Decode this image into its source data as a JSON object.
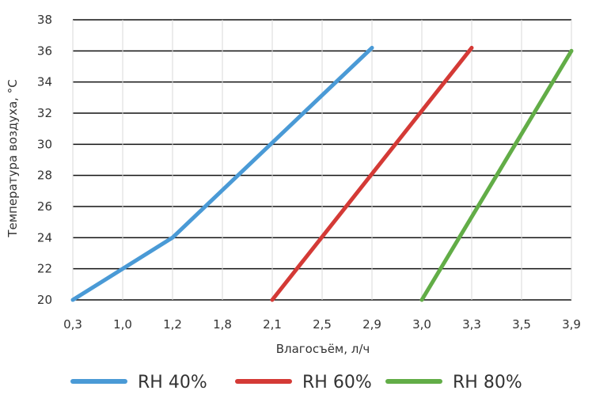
{
  "chart_data": {
    "type": "line",
    "title": "",
    "xlabel": "Влагосъём, л/ч",
    "ylabel": "Температура воздуха, °С",
    "x_tick_labels": [
      "0,3",
      "1,0",
      "1,2",
      "1,8",
      "2,1",
      "2,5",
      "2,9",
      "3,0",
      "3,3",
      "3,5",
      "3,9"
    ],
    "y_ticks": [
      20,
      22,
      24,
      26,
      28,
      30,
      32,
      34,
      36,
      38
    ],
    "ylim": [
      20,
      38
    ],
    "grid": "horizontal",
    "legend_position": "bottom",
    "series": [
      {
        "name": "RH 40%",
        "color": "#4a9ad6",
        "points": [
          [
            0,
            20
          ],
          [
            2,
            24
          ],
          [
            6,
            36.2
          ]
        ]
      },
      {
        "name": "RH 60%",
        "color": "#d43a36",
        "points": [
          [
            4,
            20
          ],
          [
            8,
            36.2
          ]
        ]
      },
      {
        "name": "RH 80%",
        "color": "#62ad47",
        "points": [
          [
            7,
            20
          ],
          [
            10,
            36
          ]
        ]
      }
    ]
  }
}
